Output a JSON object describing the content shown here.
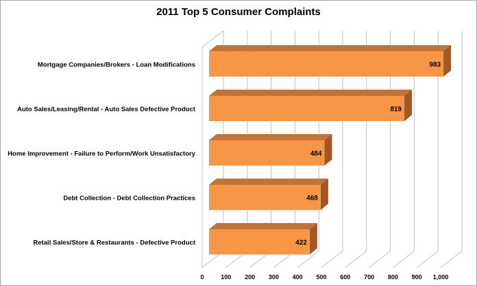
{
  "chart_data": {
    "type": "bar",
    "orientation": "horizontal",
    "style": "3d",
    "title": "2011 Top 5 Consumer Complaints",
    "categories": [
      "Mortgage Companies/Brokers - Loan Modifications",
      "Auto Sales/Leasing/Rental - Auto Sales Defective Product",
      "Home Improvement - Failure to Perform/Work Unsatisfactory",
      "Debt Collection - Debt Collection Practices",
      "Retail Sales/Store & Restaurants - Defective Product"
    ],
    "values": [
      983,
      819,
      484,
      468,
      422
    ],
    "data_labels": [
      "983",
      "819",
      "484",
      "468",
      "422"
    ],
    "xlim": [
      0,
      1000
    ],
    "x_ticks": [
      0,
      100,
      200,
      300,
      400,
      500,
      600,
      700,
      800,
      900,
      1000
    ],
    "x_tick_labels": [
      "0",
      "100",
      "200",
      "300",
      "400",
      "500",
      "600",
      "700",
      "800",
      "900",
      "1,000"
    ],
    "grid": true,
    "legend": "none",
    "colors": {
      "bar_front": "#f79646",
      "bar_top": "#c0743a",
      "bar_side": "#a0582a",
      "grid": "#bfbfbf"
    }
  }
}
